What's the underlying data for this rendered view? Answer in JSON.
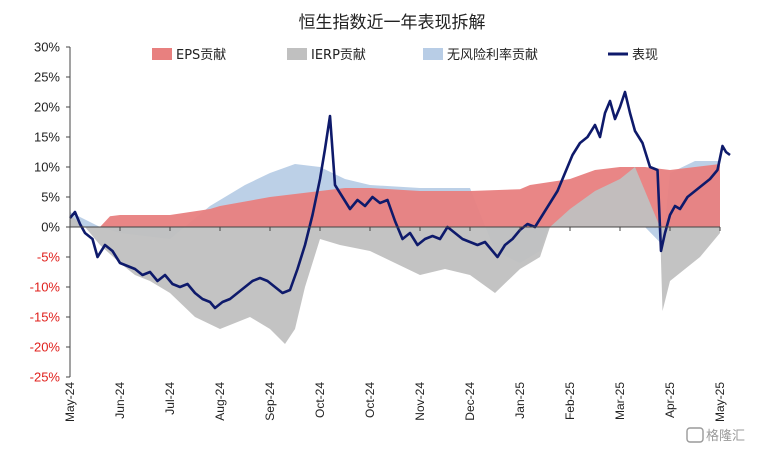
{
  "chart_data": {
    "type": "area",
    "title": "恒生指数近一年表现拆解",
    "ylim": [
      -25,
      30
    ],
    "yticks": [
      "30%",
      "25%",
      "20%",
      "15%",
      "10%",
      "5%",
      "0%",
      "-5%",
      "-10%",
      "-15%",
      "-20%",
      "-25%"
    ],
    "ytick_values": [
      30,
      25,
      20,
      15,
      10,
      5,
      0,
      -5,
      -10,
      -15,
      -20,
      -25
    ],
    "xticks": [
      "May-24",
      "Jun-24",
      "Jul-24",
      "Aug-24",
      "Sep-24",
      "Oct-24",
      "Oct-24",
      "Nov-24",
      "Dec-24",
      "Jan-25",
      "Feb-25",
      "Mar-25",
      "Apr-25",
      "May-25"
    ],
    "xtick_positions": [
      0,
      1,
      2,
      3,
      4,
      5,
      6,
      7,
      8,
      9,
      10,
      11,
      12,
      13
    ],
    "x_range": [
      0,
      13
    ],
    "legend_position": "top",
    "series": [
      {
        "name": "EPS贡献",
        "kind": "area",
        "color": "#e8807f",
        "points": [
          [
            0,
            0
          ],
          [
            0.6,
            0
          ],
          [
            0.8,
            1.8
          ],
          [
            1,
            2
          ],
          [
            2,
            2
          ],
          [
            2.8,
            3
          ],
          [
            3,
            3.5
          ],
          [
            4,
            5
          ],
          [
            5,
            6
          ],
          [
            5.5,
            6.5
          ],
          [
            6,
            6.5
          ],
          [
            7,
            6
          ],
          [
            8,
            6
          ],
          [
            9,
            6.3
          ],
          [
            9.2,
            7
          ],
          [
            10,
            8
          ],
          [
            10.5,
            9.5
          ],
          [
            11,
            10
          ],
          [
            11.5,
            10
          ],
          [
            12,
            9.5
          ],
          [
            13,
            10.5
          ]
        ]
      },
      {
        "name": "IERP贡献",
        "kind": "area",
        "color": "#c0c0c0",
        "points": [
          [
            0,
            2
          ],
          [
            0.3,
            0
          ],
          [
            0.6,
            -3
          ],
          [
            1,
            -6
          ],
          [
            1.3,
            -8
          ],
          [
            1.6,
            -9
          ],
          [
            2,
            -11
          ],
          [
            2.5,
            -15
          ],
          [
            3,
            -17
          ],
          [
            3.3,
            -16
          ],
          [
            3.6,
            -15
          ],
          [
            4,
            -17
          ],
          [
            4.3,
            -19.5
          ],
          [
            4.5,
            -17
          ],
          [
            4.7,
            -10
          ],
          [
            5,
            -2
          ],
          [
            5.4,
            -3
          ],
          [
            6,
            -4
          ],
          [
            6.5,
            -6
          ],
          [
            7,
            -8
          ],
          [
            7.5,
            -7
          ],
          [
            8,
            -8
          ],
          [
            8.5,
            -11
          ],
          [
            9,
            -7
          ],
          [
            9.4,
            -5
          ],
          [
            9.6,
            0
          ],
          [
            10,
            3
          ],
          [
            10.5,
            6
          ],
          [
            11,
            8
          ],
          [
            11.3,
            10
          ],
          [
            11.6,
            4
          ],
          [
            11.8,
            0
          ],
          [
            11.85,
            -14
          ],
          [
            12,
            -9
          ],
          [
            12.3,
            -7
          ],
          [
            12.6,
            -5
          ],
          [
            13,
            -1
          ]
        ]
      },
      {
        "name": "无风险利率贡献",
        "kind": "area",
        "color": "#b8cde6",
        "points": [
          [
            0,
            2.5
          ],
          [
            0.6,
            0
          ],
          [
            1,
            -1
          ],
          [
            2,
            -2
          ],
          [
            2.8,
            3.5
          ],
          [
            3.5,
            7
          ],
          [
            4,
            9
          ],
          [
            4.5,
            10.5
          ],
          [
            5,
            10
          ],
          [
            5.5,
            8
          ],
          [
            6,
            7
          ],
          [
            7,
            6.5
          ],
          [
            8,
            6.5
          ],
          [
            8.5,
            -4
          ],
          [
            9,
            -6
          ],
          [
            9.4,
            -4
          ],
          [
            9.6,
            0.5
          ],
          [
            10,
            1
          ],
          [
            10.5,
            0.5
          ],
          [
            11,
            0
          ],
          [
            11.5,
            0
          ],
          [
            11.85,
            -3
          ],
          [
            12,
            9
          ],
          [
            12.5,
            11
          ],
          [
            13,
            11
          ]
        ]
      },
      {
        "name": "表现",
        "kind": "line",
        "color": "#0e1a6b",
        "points": [
          [
            0,
            1.5
          ],
          [
            0.1,
            2.5
          ],
          [
            0.2,
            0.5
          ],
          [
            0.3,
            -1
          ],
          [
            0.45,
            -2
          ],
          [
            0.55,
            -5
          ],
          [
            0.7,
            -3
          ],
          [
            0.85,
            -4
          ],
          [
            1,
            -6
          ],
          [
            1.15,
            -6.5
          ],
          [
            1.3,
            -7
          ],
          [
            1.45,
            -8
          ],
          [
            1.6,
            -7.5
          ],
          [
            1.75,
            -9
          ],
          [
            1.9,
            -8
          ],
          [
            2.05,
            -9.5
          ],
          [
            2.2,
            -10
          ],
          [
            2.35,
            -9.5
          ],
          [
            2.5,
            -11
          ],
          [
            2.65,
            -12
          ],
          [
            2.8,
            -12.5
          ],
          [
            2.9,
            -13.5
          ],
          [
            3.05,
            -12.5
          ],
          [
            3.2,
            -12
          ],
          [
            3.35,
            -11
          ],
          [
            3.5,
            -10
          ],
          [
            3.65,
            -9
          ],
          [
            3.8,
            -8.5
          ],
          [
            3.95,
            -9
          ],
          [
            4.1,
            -10
          ],
          [
            4.25,
            -11
          ],
          [
            4.4,
            -10.5
          ],
          [
            4.55,
            -7
          ],
          [
            4.7,
            -3
          ],
          [
            4.85,
            2
          ],
          [
            5,
            8
          ],
          [
            5.1,
            13
          ],
          [
            5.2,
            18.5
          ],
          [
            5.3,
            7
          ],
          [
            5.45,
            5
          ],
          [
            5.6,
            3
          ],
          [
            5.75,
            4.5
          ],
          [
            5.9,
            3.5
          ],
          [
            6.05,
            5
          ],
          [
            6.2,
            4
          ],
          [
            6.35,
            4.5
          ],
          [
            6.5,
            1
          ],
          [
            6.65,
            -2
          ],
          [
            6.8,
            -1
          ],
          [
            6.95,
            -3
          ],
          [
            7.1,
            -2
          ],
          [
            7.25,
            -1.5
          ],
          [
            7.4,
            -2
          ],
          [
            7.55,
            0
          ],
          [
            7.7,
            -1
          ],
          [
            7.85,
            -2
          ],
          [
            8,
            -2.5
          ],
          [
            8.15,
            -3
          ],
          [
            8.3,
            -2.5
          ],
          [
            8.45,
            -4
          ],
          [
            8.55,
            -5
          ],
          [
            8.7,
            -3
          ],
          [
            8.85,
            -2
          ],
          [
            9,
            -0.5
          ],
          [
            9.15,
            0.5
          ],
          [
            9.3,
            0
          ],
          [
            9.45,
            2
          ],
          [
            9.6,
            4
          ],
          [
            9.75,
            6
          ],
          [
            9.9,
            9
          ],
          [
            10.05,
            12
          ],
          [
            10.2,
            14
          ],
          [
            10.35,
            15
          ],
          [
            10.5,
            17
          ],
          [
            10.6,
            15
          ],
          [
            10.7,
            19
          ],
          [
            10.8,
            21
          ],
          [
            10.9,
            18
          ],
          [
            11,
            20
          ],
          [
            11.1,
            22.5
          ],
          [
            11.2,
            19
          ],
          [
            11.3,
            16
          ],
          [
            11.45,
            14
          ],
          [
            11.6,
            10
          ],
          [
            11.75,
            9.5
          ],
          [
            11.82,
            -4
          ],
          [
            11.9,
            -1
          ],
          [
            12,
            2
          ],
          [
            12.1,
            3.5
          ],
          [
            12.2,
            3
          ],
          [
            12.35,
            5
          ],
          [
            12.5,
            6
          ],
          [
            12.65,
            7
          ],
          [
            12.8,
            8
          ],
          [
            12.95,
            9.5
          ],
          [
            13.05,
            13.5
          ],
          [
            13.12,
            12.5
          ],
          [
            13.2,
            12
          ]
        ]
      }
    ]
  },
  "watermark": "格隆汇"
}
